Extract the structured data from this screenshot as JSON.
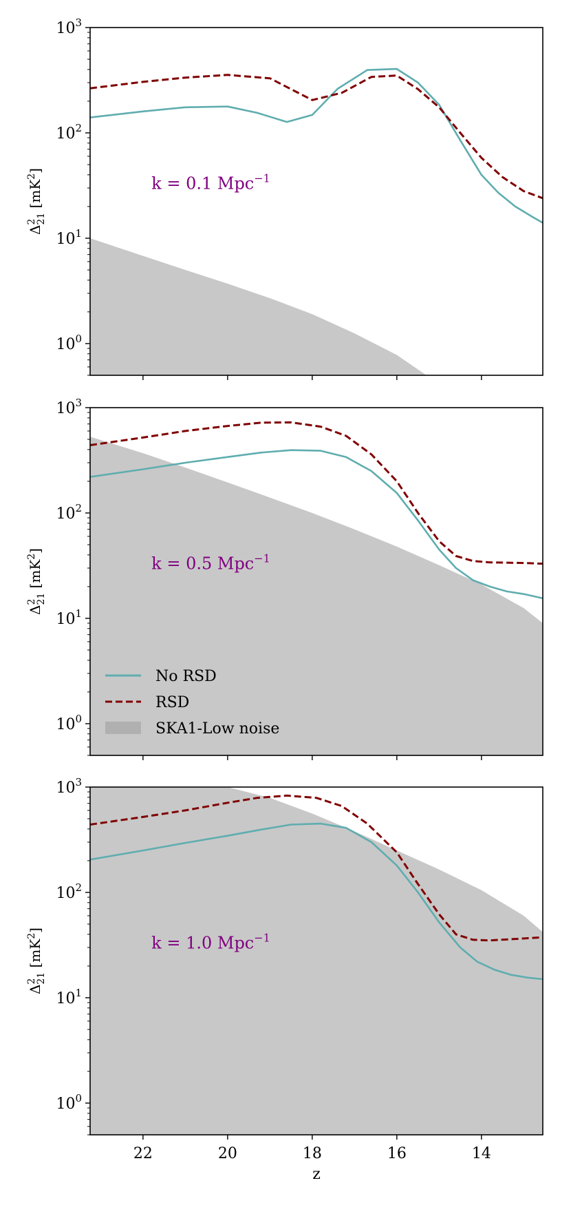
{
  "chart_data": [
    {
      "type": "line",
      "title": "",
      "xlabel": "",
      "ylabel": "Δ²₂₁ [mK²]",
      "ylabel_main": "Δ",
      "ylabel_sup": "2",
      "ylabel_sub": "21",
      "ylabel_unit": " [mK",
      "ylabel_unit_sup": "2",
      "ylabel_close": "]",
      "xlim": [
        23.25,
        12.55
      ],
      "ylim": [
        0.5,
        1000
      ],
      "yscale": "log",
      "xticks": [
        22,
        20,
        18,
        16,
        14
      ],
      "xticklabels": [
        "",
        "",
        "",
        "",
        ""
      ],
      "yticks": [
        {
          "base": "10",
          "exp": "0",
          "value": 1
        },
        {
          "base": "10",
          "exp": "1",
          "value": 10
        },
        {
          "base": "10",
          "exp": "2",
          "value": 100
        },
        {
          "base": "10",
          "exp": "3",
          "value": 1000
        }
      ],
      "annotation": {
        "main": "k = 0.1 Mpc",
        "sup": "−1",
        "x": 21.8,
        "y": 33
      },
      "series": [
        {
          "name": "No RSD",
          "color": "#5fadaf",
          "style": "solid",
          "x": [
            23.25,
            22.0,
            21.0,
            20.0,
            19.3,
            18.6,
            18.0,
            17.4,
            16.7,
            16.0,
            15.5,
            15.0,
            14.5,
            14.0,
            13.6,
            13.2,
            12.8,
            12.55
          ],
          "y": [
            140,
            160,
            175,
            178,
            155,
            127,
            148,
            262,
            395,
            405,
            300,
            185,
            85,
            40,
            27,
            20,
            16,
            14
          ]
        },
        {
          "name": "RSD",
          "color": "#800000",
          "style": "dashed",
          "x": [
            23.25,
            22.0,
            21.0,
            20.0,
            19.0,
            18.5,
            18.0,
            17.3,
            16.6,
            16.0,
            15.5,
            15.0,
            14.5,
            14.0,
            13.5,
            13.0,
            12.55
          ],
          "y": [
            265,
            305,
            335,
            355,
            330,
            260,
            205,
            240,
            340,
            350,
            260,
            175,
            100,
            58,
            38,
            28,
            24
          ]
        },
        {
          "name": "SKA1-Low noise",
          "color": "#c8c8c8",
          "style": "fill",
          "x": [
            23.25,
            22.0,
            21.0,
            20.0,
            19.0,
            18.0,
            17.0,
            16.0,
            15.3,
            12.55
          ],
          "y": [
            10,
            6.8,
            5.0,
            3.7,
            2.7,
            1.9,
            1.25,
            0.78,
            0.5,
            0.5
          ]
        }
      ]
    },
    {
      "type": "line",
      "title": "",
      "xlabel": "",
      "ylabel": "Δ²₂₁ [mK²]",
      "ylabel_main": "Δ",
      "ylabel_sup": "2",
      "ylabel_sub": "21",
      "ylabel_unit": " [mK",
      "ylabel_unit_sup": "2",
      "ylabel_close": "]",
      "xlim": [
        23.25,
        12.55
      ],
      "ylim": [
        0.5,
        1000
      ],
      "yscale": "log",
      "xticks": [
        22,
        20,
        18,
        16,
        14
      ],
      "xticklabels": [
        "",
        "",
        "",
        "",
        ""
      ],
      "yticks": [
        {
          "base": "10",
          "exp": "0",
          "value": 1
        },
        {
          "base": "10",
          "exp": "1",
          "value": 10
        },
        {
          "base": "10",
          "exp": "2",
          "value": 100
        },
        {
          "base": "10",
          "exp": "3",
          "value": 1000
        }
      ],
      "annotation": {
        "main": "k = 0.5 Mpc",
        "sup": "−1",
        "x": 21.8,
        "y": 33
      },
      "legend": {
        "position": "lower-left",
        "entries": [
          "No RSD",
          "RSD",
          "SKA1-Low noise"
        ]
      },
      "series": [
        {
          "name": "No RSD",
          "color": "#5fadaf",
          "style": "solid",
          "x": [
            23.25,
            22.0,
            21.0,
            20.0,
            19.2,
            18.5,
            17.8,
            17.2,
            16.6,
            16.0,
            15.5,
            15.0,
            14.6,
            14.2,
            13.8,
            13.4,
            13.0,
            12.55
          ],
          "y": [
            220,
            260,
            300,
            340,
            375,
            395,
            390,
            340,
            250,
            155,
            85,
            45,
            30,
            23,
            20,
            18,
            17,
            15.5
          ]
        },
        {
          "name": "RSD",
          "color": "#800000",
          "style": "dashed",
          "x": [
            23.25,
            22.0,
            21.0,
            20.0,
            19.2,
            18.5,
            17.8,
            17.2,
            16.6,
            16.0,
            15.5,
            15.0,
            14.6,
            14.2,
            13.8,
            13.0,
            12.55
          ],
          "y": [
            440,
            520,
            600,
            670,
            720,
            725,
            660,
            540,
            360,
            200,
            100,
            54,
            39,
            35,
            34,
            33.5,
            33
          ]
        },
        {
          "name": "SKA1-Low noise",
          "color": "#c8c8c8",
          "style": "fill",
          "x": [
            23.25,
            22.0,
            21.0,
            20.0,
            19.0,
            18.0,
            17.0,
            16.0,
            15.0,
            14.0,
            13.0,
            12.55
          ],
          "y": [
            530,
            370,
            270,
            195,
            140,
            100,
            70,
            48,
            32,
            21,
            12.5,
            9.0
          ]
        }
      ]
    },
    {
      "type": "line",
      "title": "",
      "xlabel": "z",
      "ylabel": "Δ²₂₁ [mK²]",
      "ylabel_main": "Δ",
      "ylabel_sup": "2",
      "ylabel_sub": "21",
      "ylabel_unit": " [mK",
      "ylabel_unit_sup": "2",
      "ylabel_close": "]",
      "xlim": [
        23.25,
        12.55
      ],
      "ylim": [
        0.5,
        1000
      ],
      "yscale": "log",
      "xticks": [
        22,
        20,
        18,
        16,
        14
      ],
      "xticklabels": [
        "22",
        "20",
        "18",
        "16",
        "14"
      ],
      "yticks": [
        {
          "base": "10",
          "exp": "0",
          "value": 1
        },
        {
          "base": "10",
          "exp": "1",
          "value": 10
        },
        {
          "base": "10",
          "exp": "2",
          "value": 100
        },
        {
          "base": "10",
          "exp": "3",
          "value": 1000
        }
      ],
      "annotation": {
        "main": "k = 1.0 Mpc",
        "sup": "−1",
        "x": 21.8,
        "y": 33
      },
      "series": [
        {
          "name": "No RSD",
          "color": "#5fadaf",
          "style": "solid",
          "x": [
            23.25,
            22.0,
            21.0,
            20.0,
            19.2,
            18.5,
            17.8,
            17.2,
            16.6,
            16.0,
            15.5,
            15.0,
            14.5,
            14.1,
            13.7,
            13.3,
            12.9,
            12.55
          ],
          "y": [
            205,
            250,
            295,
            345,
            395,
            440,
            450,
            410,
            300,
            180,
            100,
            52,
            30,
            22,
            18.5,
            16.5,
            15.5,
            15
          ]
        },
        {
          "name": "RSD",
          "color": "#800000",
          "style": "dashed",
          "x": [
            23.25,
            22.0,
            21.0,
            20.0,
            19.3,
            18.6,
            17.9,
            17.3,
            16.7,
            16.0,
            15.5,
            15.0,
            14.6,
            14.2,
            13.8,
            13.0,
            12.55
          ],
          "y": [
            440,
            520,
            600,
            710,
            790,
            830,
            790,
            660,
            450,
            240,
            120,
            62,
            40,
            35.5,
            35,
            36.5,
            37.5
          ]
        },
        {
          "name": "SKA1-Low noise",
          "color": "#c8c8c8",
          "style": "fill",
          "x": [
            23.25,
            22.0,
            21.0,
            20.0,
            19.0,
            18.0,
            17.0,
            16.0,
            15.0,
            14.0,
            13.0,
            12.55
          ],
          "y": [
            1000,
            1000,
            1000,
            1000,
            790,
            560,
            380,
            250,
            165,
            105,
            60,
            42
          ]
        }
      ]
    }
  ],
  "legend_entries": [
    "No RSD",
    "RSD",
    "SKA1-Low noise"
  ]
}
